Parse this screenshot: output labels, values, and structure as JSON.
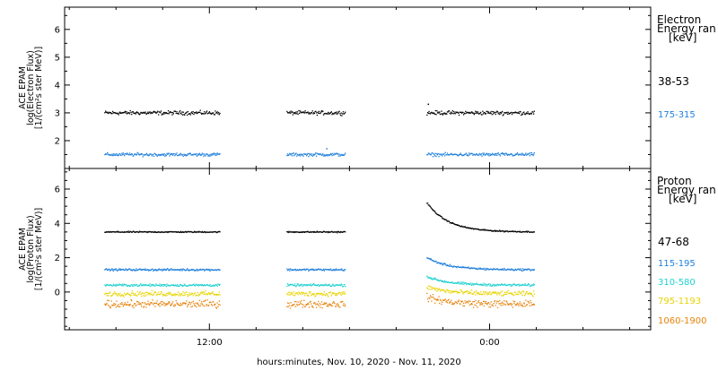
{
  "chart_data": [
    {
      "type": "scatter",
      "ylabel": [
        "ACE EPAM",
        "log(Electron Flux)",
        "[1/(cm²s ster MeV)]"
      ],
      "ylim": [
        1.0,
        6.8
      ],
      "yticks": [
        2,
        3,
        4,
        5,
        6
      ],
      "legend_title": [
        "Electron",
        "Energy ran",
        "[keV]"
      ],
      "series": [
        {
          "name": "38-53",
          "color": "#000000",
          "level": 3.0,
          "noise": 0.06,
          "segments": [
            [
              -4.5,
              0.45
            ],
            [
              3.3,
              5.8
            ],
            [
              9.3,
              13.9
            ]
          ],
          "spike": {
            "x": 9.35,
            "y": 3.3
          }
        },
        {
          "name": "175-315",
          "color": "#1f7fdc",
          "level": 1.5,
          "noise": 0.05,
          "segments": [
            [
              -4.5,
              0.45
            ],
            [
              3.3,
              5.8
            ],
            [
              9.3,
              13.9
            ]
          ],
          "spike": {
            "x": 5.0,
            "y": 1.7
          }
        }
      ]
    },
    {
      "type": "scatter",
      "ylabel": [
        "ACE EPAM",
        "log(Proton Flux)",
        "[1/(cm²s ster MeV)]"
      ],
      "ylim": [
        -2.2,
        7.2
      ],
      "yticks": [
        0,
        2,
        4,
        6
      ],
      "legend_title": [
        "Proton",
        "Energy ran",
        "[keV]"
      ],
      "series": [
        {
          "name": "47-68",
          "color": "#000000",
          "level": 3.5,
          "noise": 0.03,
          "segments": [
            [
              -4.5,
              0.45
            ],
            [
              3.3,
              5.8
            ],
            [
              9.3,
              13.9
            ]
          ],
          "event": {
            "start": 9.3,
            "peak": 5.2,
            "decay": 0.9
          }
        },
        {
          "name": "115-195",
          "color": "#1f7fdc",
          "level": 1.3,
          "noise": 0.05,
          "segments": [
            [
              -4.5,
              0.45
            ],
            [
              3.3,
              5.8
            ],
            [
              9.3,
              13.9
            ]
          ],
          "event": {
            "start": 9.3,
            "peak": 2.0,
            "decay": 0.9
          }
        },
        {
          "name": "310-580",
          "color": "#21d0d0",
          "level": 0.4,
          "noise": 0.06,
          "segments": [
            [
              -4.5,
              0.45
            ],
            [
              3.3,
              5.8
            ],
            [
              9.3,
              13.9
            ]
          ],
          "event": {
            "start": 9.3,
            "peak": 0.9,
            "decay": 0.9
          }
        },
        {
          "name": "795-1193",
          "color": "#e8d400",
          "level": -0.1,
          "noise": 0.12,
          "segments": [
            [
              -4.5,
              0.45
            ],
            [
              3.3,
              5.8
            ],
            [
              9.3,
              13.9
            ]
          ],
          "event": {
            "start": 9.3,
            "peak": 0.3,
            "decay": 0.9
          }
        },
        {
          "name": "1060-1900",
          "color": "#e8820a",
          "level": -0.7,
          "noise": 0.18,
          "segments": [
            [
              -4.5,
              0.45
            ],
            [
              3.3,
              5.8
            ],
            [
              9.3,
              13.9
            ]
          ],
          "event": {
            "start": 9.3,
            "peak": -0.3,
            "decay": 0.9
          }
        }
      ]
    }
  ],
  "xaxis": {
    "xlim": [
      -6.2,
      18.9
    ],
    "tick_labels": [
      {
        "x": 0,
        "label": "12:00"
      },
      {
        "x": 12,
        "label": "0:00"
      },
      {
        "x": 24,
        "label": "12:00"
      }
    ],
    "xlabel": "hours:minutes, Nov. 10, 2020 - Nov. 11, 2020"
  }
}
